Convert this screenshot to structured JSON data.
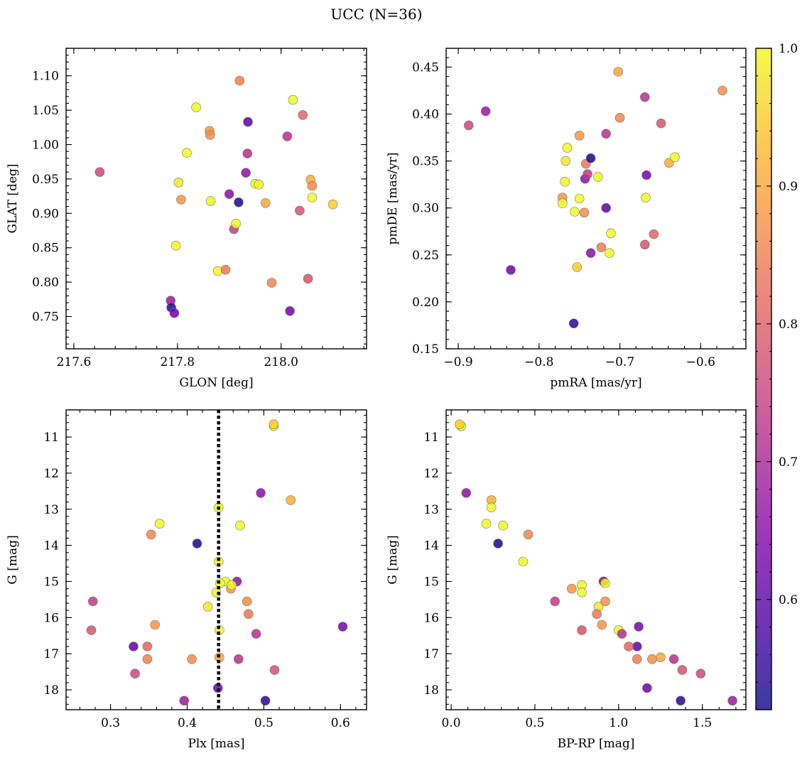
{
  "chart_data": {
    "title": "UCC (N=36)",
    "colorbar": {
      "range": [
        0.52,
        1.0
      ],
      "ticks": [
        "0.6",
        "0.7",
        "0.8",
        "0.9",
        "1.0"
      ],
      "colormap": "plasma"
    },
    "stars": [
      {
        "glon": 217.65,
        "glat": 0.96,
        "pmra": -0.887,
        "pmde": 0.388,
        "plx": 0.332,
        "g": 17.55,
        "bprp": 1.49,
        "p": 0.76
      },
      {
        "glon": 217.787,
        "glat": 0.773,
        "pmra": -0.866,
        "pmde": 0.403,
        "plx": 0.396,
        "g": 18.3,
        "bprp": 1.68,
        "p": 0.68
      },
      {
        "glon": 217.788,
        "glat": 0.763,
        "pmra": -0.757,
        "pmde": 0.177,
        "plx": 0.502,
        "g": 18.3,
        "bprp": 1.37,
        "p": 0.55
      },
      {
        "glon": 217.794,
        "glat": 0.755,
        "pmra": -0.835,
        "pmde": 0.234,
        "plx": 0.44,
        "g": 17.95,
        "bprp": 1.17,
        "p": 0.62
      },
      {
        "glon": 217.797,
        "glat": 0.853,
        "pmra": -0.765,
        "pmde": 0.364,
        "plx": 0.441,
        "g": 14.45,
        "bprp": 0.43,
        "p": 1.0
      },
      {
        "glon": 217.802,
        "glat": 0.945,
        "pmra": -0.767,
        "pmde": 0.35,
        "plx": 0.427,
        "g": 15.7,
        "bprp": 0.88,
        "p": 0.98
      },
      {
        "glon": 217.807,
        "glat": 0.92,
        "pmra": -0.771,
        "pmde": 0.311,
        "plx": 0.358,
        "g": 16.2,
        "bprp": 0.9,
        "p": 0.88
      },
      {
        "glon": 217.818,
        "glat": 0.988,
        "pmra": -0.768,
        "pmde": 0.328,
        "plx": 0.364,
        "g": 13.4,
        "bprp": 0.21,
        "p": 1.0
      },
      {
        "glon": 217.836,
        "glat": 1.054,
        "pmra": -0.771,
        "pmde": 0.305,
        "plx": 0.45,
        "g": 15.0,
        "bprp": 0.91,
        "p": 1.0
      },
      {
        "glon": 217.862,
        "glat": 1.02,
        "pmra": -0.75,
        "pmde": 0.377,
        "plx": 0.457,
        "g": 15.2,
        "bprp": 0.72,
        "p": 0.88
      },
      {
        "glon": 217.863,
        "glat": 1.014,
        "pmra": -0.744,
        "pmde": 0.295,
        "plx": 0.478,
        "g": 15.55,
        "bprp": 0.92,
        "p": 0.87
      },
      {
        "glon": 217.864,
        "glat": 0.918,
        "pmra": -0.756,
        "pmde": 0.296,
        "plx": 0.469,
        "g": 13.45,
        "bprp": 0.31,
        "p": 1.0
      },
      {
        "glon": 217.878,
        "glat": 0.816,
        "pmra": -0.75,
        "pmde": 0.31,
        "plx": 0.442,
        "g": 16.35,
        "bprp": 1.0,
        "p": 1.0
      },
      {
        "glon": 217.893,
        "glat": 0.818,
        "pmra": -0.742,
        "pmde": 0.347,
        "plx": 0.48,
        "g": 15.9,
        "bprp": 0.87,
        "p": 0.84
      },
      {
        "glon": 217.9,
        "glat": 0.928,
        "pmra": -0.743,
        "pmde": 0.331,
        "plx": 0.465,
        "g": 15.0,
        "bprp": 0.91,
        "p": 0.66
      },
      {
        "glon": 217.909,
        "glat": 0.877,
        "pmra": -0.74,
        "pmde": 0.336,
        "plx": 0.277,
        "g": 15.55,
        "bprp": 0.62,
        "p": 0.74
      },
      {
        "glon": 217.913,
        "glat": 0.885,
        "pmra": -0.727,
        "pmde": 0.333,
        "plx": 0.458,
        "g": 15.1,
        "bprp": 0.78,
        "p": 1.0
      },
      {
        "glon": 217.918,
        "glat": 0.916,
        "pmra": -0.736,
        "pmde": 0.353,
        "plx": 0.413,
        "g": 13.95,
        "bprp": 0.28,
        "p": 0.53
      },
      {
        "glon": 217.92,
        "glat": 1.093,
        "pmra": -0.723,
        "pmde": 0.258,
        "plx": 0.348,
        "g": 17.15,
        "bprp": 1.11,
        "p": 0.85
      },
      {
        "glon": 217.932,
        "glat": 0.959,
        "pmra": -0.736,
        "pmde": 0.252,
        "plx": 0.496,
        "g": 12.55,
        "bprp": 0.09,
        "p": 0.66
      },
      {
        "glon": 217.935,
        "glat": 0.987,
        "pmra": -0.717,
        "pmde": 0.379,
        "plx": 0.467,
        "g": 17.15,
        "bprp": 1.33,
        "p": 0.72
      },
      {
        "glon": 217.936,
        "glat": 1.033,
        "pmra": -0.717,
        "pmde": 0.3,
        "plx": 0.33,
        "g": 16.8,
        "bprp": 1.11,
        "p": 0.6
      },
      {
        "glon": 217.95,
        "glat": 0.943,
        "pmra": -0.713,
        "pmde": 0.252,
        "plx": 0.443,
        "g": 15.05,
        "bprp": 0.92,
        "p": 1.0
      },
      {
        "glon": 217.957,
        "glat": 0.942,
        "pmra": -0.711,
        "pmde": 0.273,
        "plx": 0.438,
        "g": 15.3,
        "bprp": 0.78,
        "p": 1.0
      },
      {
        "glon": 217.97,
        "glat": 0.915,
        "pmra": -0.702,
        "pmde": 0.445,
        "plx": 0.442,
        "g": 17.1,
        "bprp": 1.25,
        "p": 0.9
      },
      {
        "glon": 217.982,
        "glat": 0.799,
        "pmra": -0.7,
        "pmde": 0.396,
        "plx": 0.353,
        "g": 13.7,
        "bprp": 0.46,
        "p": 0.86
      },
      {
        "glon": 218.012,
        "glat": 1.012,
        "pmra": -0.669,
        "pmde": 0.418,
        "plx": 0.49,
        "g": 16.45,
        "bprp": 1.02,
        "p": 0.72
      },
      {
        "glon": 218.017,
        "glat": 0.758,
        "pmra": -0.667,
        "pmde": 0.335,
        "plx": 0.603,
        "g": 16.25,
        "bprp": 1.12,
        "p": 0.63
      },
      {
        "glon": 218.023,
        "glat": 1.065,
        "pmra": -0.668,
        "pmde": 0.311,
        "plx": 0.513,
        "g": 10.7,
        "bprp": 0.06,
        "p": 1.0
      },
      {
        "glon": 218.036,
        "glat": 0.904,
        "pmra": -0.669,
        "pmde": 0.261,
        "plx": 0.275,
        "g": 16.35,
        "bprp": 0.78,
        "p": 0.78
      },
      {
        "glon": 218.042,
        "glat": 1.043,
        "pmra": -0.658,
        "pmde": 0.272,
        "plx": 0.348,
        "g": 16.8,
        "bprp": 1.06,
        "p": 0.81
      },
      {
        "glon": 218.052,
        "glat": 0.805,
        "pmra": -0.649,
        "pmde": 0.39,
        "plx": 0.514,
        "g": 17.45,
        "bprp": 1.38,
        "p": 0.78
      },
      {
        "glon": 218.057,
        "glat": 0.949,
        "pmra": -0.639,
        "pmde": 0.348,
        "plx": 0.535,
        "g": 12.75,
        "bprp": 0.24,
        "p": 0.91
      },
      {
        "glon": 218.06,
        "glat": 0.923,
        "pmra": -0.632,
        "pmde": 0.354,
        "plx": 0.441,
        "g": 12.95,
        "bprp": 0.24,
        "p": 1.0
      },
      {
        "glon": 218.06,
        "glat": 0.94,
        "pmra": -0.573,
        "pmde": 0.425,
        "plx": 0.406,
        "g": 17.15,
        "bprp": 1.2,
        "p": 0.87
      },
      {
        "glon": 218.1,
        "glat": 0.913,
        "pmra": -0.753,
        "pmde": 0.237,
        "plx": 0.513,
        "g": 10.65,
        "bprp": 0.05,
        "p": 0.95
      }
    ],
    "panels": [
      {
        "type": "scatter",
        "x": "glon",
        "y": "glat",
        "xlabel": "GLON [deg]",
        "ylabel": "GLAT [deg]",
        "xlim": [
          217.585,
          218.165
        ],
        "ylim": [
          0.703,
          1.14
        ],
        "xticks": [
          217.6,
          217.8,
          218.0
        ],
        "xticklabels": [
          "217.6",
          "217.8",
          "218.0"
        ],
        "yticks": [
          0.75,
          0.8,
          0.85,
          0.9,
          0.95,
          1.0,
          1.05,
          1.1
        ],
        "yticklabels": [
          "0.75",
          "0.80",
          "0.85",
          "0.90",
          "0.95",
          "1.00",
          "1.05",
          "1.10"
        ],
        "invert_y": false
      },
      {
        "type": "scatter",
        "x": "pmra",
        "y": "pmde",
        "xlabel": "pmRA [mas/yr]",
        "ylabel": "pmDE [mas/yr]",
        "xlim": [
          -0.915,
          -0.544
        ],
        "ylim": [
          0.15,
          0.47
        ],
        "xticks": [
          -0.9,
          -0.8,
          -0.7,
          -0.6
        ],
        "xticklabels": [
          "−0.9",
          "−0.8",
          "−0.7",
          "−0.6"
        ],
        "yticks": [
          0.15,
          0.2,
          0.25,
          0.3,
          0.35,
          0.4,
          0.45
        ],
        "yticklabels": [
          "0.15",
          "0.20",
          "0.25",
          "0.30",
          "0.35",
          "0.40",
          "0.45"
        ],
        "invert_y": false
      },
      {
        "type": "scatter",
        "x": "plx",
        "y": "g",
        "xlabel": "Plx [mas]",
        "ylabel": "G [mag]",
        "xlim": [
          0.242,
          0.634
        ],
        "ylim": [
          10.25,
          18.55
        ],
        "xticks": [
          0.3,
          0.4,
          0.5,
          0.6
        ],
        "xticklabels": [
          "0.3",
          "0.4",
          "0.5",
          "0.6"
        ],
        "yticks": [
          11,
          12,
          13,
          14,
          15,
          16,
          17,
          18
        ],
        "yticklabels": [
          "11",
          "12",
          "13",
          "14",
          "15",
          "16",
          "17",
          "18"
        ],
        "invert_y": true,
        "vline": 0.441
      },
      {
        "type": "scatter",
        "x": "bprp",
        "y": "g",
        "xlabel": "BP-RP [mag]",
        "ylabel": "G [mag]",
        "xlim": [
          -0.03,
          1.76
        ],
        "ylim": [
          10.25,
          18.55
        ],
        "xticks": [
          0.0,
          0.5,
          1.0,
          1.5
        ],
        "xticklabels": [
          "0.0",
          "0.5",
          "1.0",
          "1.5"
        ],
        "yticks": [
          11,
          12,
          13,
          14,
          15,
          16,
          17,
          18
        ],
        "yticklabels": [
          "11",
          "12",
          "13",
          "14",
          "15",
          "16",
          "17",
          "18"
        ],
        "invert_y": true
      }
    ]
  }
}
